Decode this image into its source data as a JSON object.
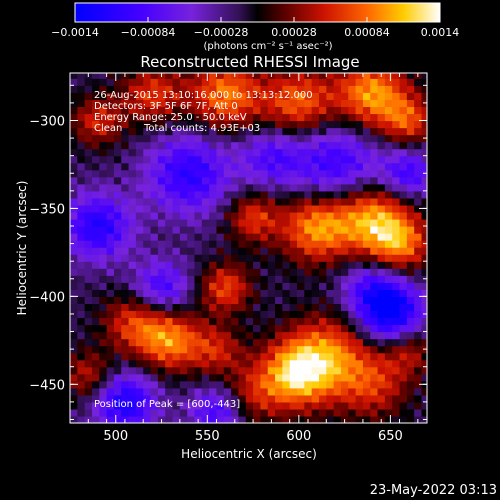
{
  "chart_data": {
    "type": "heatmap",
    "title": "Reconstructed RHESSI Image",
    "xlabel": "Heliocentric X (arcsec)",
    "ylabel": "Heliocentric Y (arcsec)",
    "xlim": [
      475,
      670
    ],
    "ylim": [
      -472,
      -273
    ],
    "x_ticks": [
      500,
      550,
      600,
      650
    ],
    "y_ticks": [
      -300,
      -350,
      -400,
      -450
    ],
    "x_tick_labels": [
      "500",
      "550",
      "600",
      "650"
    ],
    "y_tick_labels": [
      "−300",
      "−350",
      "−400",
      "−450"
    ],
    "colorbar": {
      "ticks": [
        -0.0014,
        -0.00084,
        -0.00028,
        0.00028,
        0.00084,
        0.0014
      ],
      "tick_labels": [
        "−0.0014",
        "−0.00084",
        "−0.00028",
        "0.00028",
        "0.00084",
        "0.0014"
      ],
      "unit_label": "(photons cm⁻² s⁻¹ asec⁻²)",
      "range": [
        -0.0014,
        0.0014
      ]
    },
    "annotations": [
      "26-Aug-2015 13:10:16.000 to 13:13:12.000",
      "Detectors: 3F 5F 6F 7F, Att 0",
      "Energy Range: 25.0 - 50.0 keV",
      "Clean",
      "Total counts: 4.93E+03"
    ],
    "peak_label": "Position of Peak = [600,-443]",
    "peak": [
      600,
      -443
    ],
    "colors": {
      "scale": [
        "#0000ff",
        "#5a00ff",
        "#7733ee",
        "#552299",
        "#000000",
        "#550000",
        "#cc1100",
        "#ff6600",
        "#ffcc00",
        "#ffffff"
      ]
    }
  },
  "footer": {
    "timestamp": "23-May-2022 03:13"
  }
}
